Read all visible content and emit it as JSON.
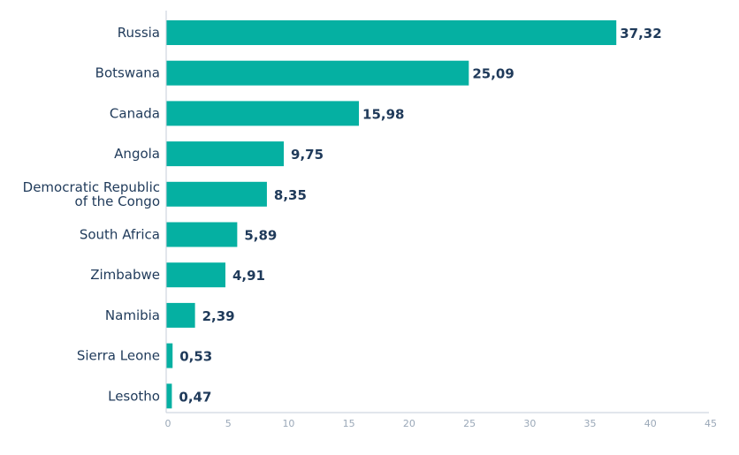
{
  "chart_data": {
    "type": "bar",
    "orientation": "horizontal",
    "title": "",
    "xlabel": "",
    "ylabel": "",
    "categories": [
      [
        "Russia"
      ],
      [
        "Botswana"
      ],
      [
        "Canada"
      ],
      [
        "Angola"
      ],
      [
        "Democratic Republic",
        "of the Congo"
      ],
      [
        "South Africa"
      ],
      [
        "Zimbabwe"
      ],
      [
        "Namibia"
      ],
      [
        "Sierra Leone"
      ],
      [
        "Lesotho"
      ]
    ],
    "values": [
      37.32,
      25.09,
      15.98,
      9.75,
      8.35,
      5.89,
      4.91,
      2.39,
      0.53,
      0.47
    ],
    "value_labels": [
      "37,32",
      "25,09",
      "15,98",
      "9,75",
      "8,35",
      "5,89",
      "4,91",
      "2,39",
      "0,53",
      "0,47"
    ],
    "xlim": [
      0,
      45
    ],
    "xticks": [
      0,
      5,
      10,
      15,
      20,
      25,
      30,
      35,
      40,
      45
    ],
    "grid": false,
    "legend": "none",
    "colors": {
      "bar": "#05b0a2",
      "label": "#1f3a5a",
      "tick": "#9aa8b8",
      "axis": "#c5ced8"
    }
  }
}
